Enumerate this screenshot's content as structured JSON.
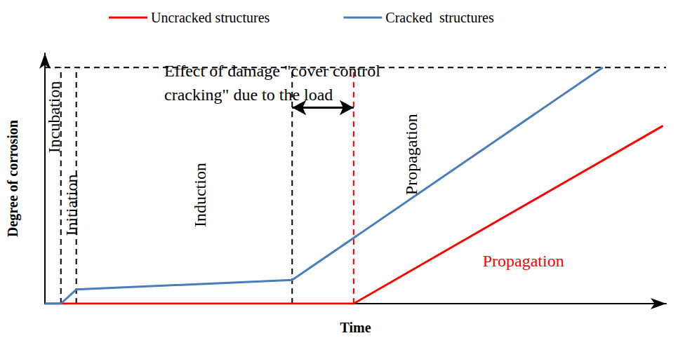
{
  "chart_data": {
    "type": "line",
    "x_label": "Time",
    "y_label": "Degree of corrosion",
    "xlim": [
      0,
      101
    ],
    "ylim": [
      0,
      106
    ],
    "tick_labels": false,
    "grid": false,
    "legend": "top",
    "series": [
      {
        "name": "Uncracked structures",
        "color": "#ff0000",
        "line_style": "solid",
        "x": [
          0,
          2.6,
          50.2,
          100.5
        ],
        "values": [
          0,
          0,
          0,
          75.3
        ]
      },
      {
        "name": "Cracked  structures",
        "color": "#4a7ebb",
        "line_style": "solid",
        "x": [
          0,
          2.6,
          5.1,
          40.2,
          90.7
        ],
        "values": [
          0,
          0,
          6,
          10,
          100
        ]
      }
    ],
    "vlines": [
      {
        "x": 2.6,
        "color": "#000000"
      },
      {
        "x": 5.1,
        "color": "#000000"
      },
      {
        "x": 40.2,
        "color": "#000000"
      },
      {
        "x": 50.2,
        "color": "#ff0000"
      }
    ],
    "hline": {
      "y": 100,
      "color": "#000000"
    },
    "arrow": {
      "x": [
        40.2,
        50.2
      ],
      "y": 83
    },
    "annotations": [
      {
        "text": "Incubation",
        "x": 1.5,
        "y": 79,
        "color": "#000000",
        "vertical": true
      },
      {
        "text": "Initiation",
        "x": 4.3,
        "y": 41.7,
        "color": "#000000",
        "vertical": true
      },
      {
        "text": "Induction",
        "x": 25.2,
        "y": 46,
        "color": "#000000",
        "vertical": true
      },
      {
        "text": "Propagation",
        "x": 59.6,
        "y": 63.2,
        "color": "#000000",
        "vertical": true
      },
      {
        "text": "Propagation",
        "x": 77.8,
        "y": 18.1,
        "color": "#ff0000",
        "vertical": false
      },
      {
        "text": "Effect of damage \"cover control\ncracking\" due to the load",
        "x": 19.4,
        "y": 93.4,
        "color": "#000000",
        "vertical": false,
        "align": "left"
      }
    ]
  }
}
